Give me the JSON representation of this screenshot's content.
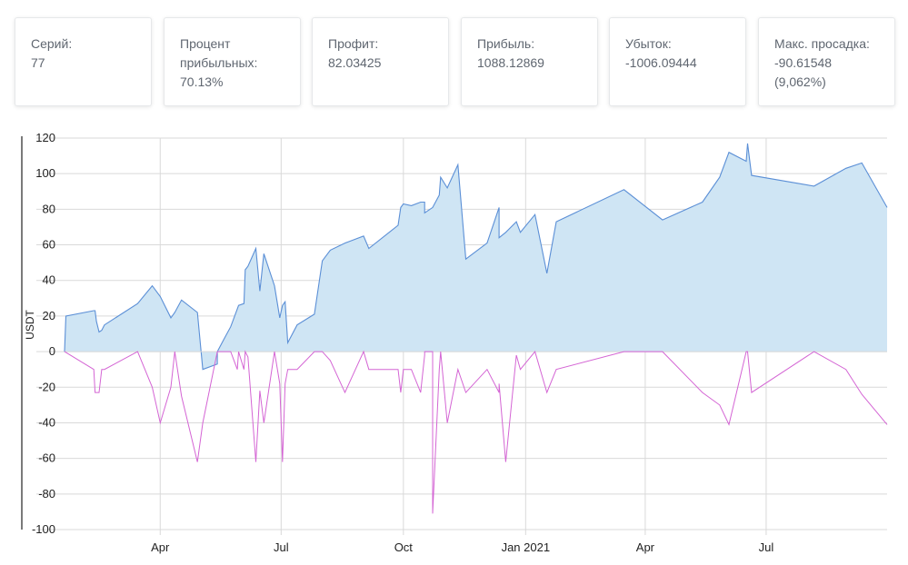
{
  "stats": [
    {
      "label": "Серий:",
      "value": "77"
    },
    {
      "label": "Процент прибыльных:",
      "value": "70.13%"
    },
    {
      "label": "Профит:",
      "value": "82.03425"
    },
    {
      "label": "Прибыль:",
      "value": "1088.12869"
    },
    {
      "label": "Убыток:",
      "value": "-1006.09444"
    },
    {
      "label": "Макс. просадка:",
      "value": "-90.61548 (9,062%)"
    }
  ],
  "colors": {
    "profit_line": "#5b8fd6",
    "profit_fill": "#cfe5f4",
    "drawdown_line": "#d465d4",
    "grid": "#d9d9d9"
  },
  "chart_data": {
    "type": "area",
    "title": "",
    "xlabel": "",
    "ylabel": "USDT",
    "ylim": [
      -100,
      120
    ],
    "yticks": [
      120,
      100,
      80,
      60,
      40,
      20,
      0,
      -20,
      -40,
      -60,
      -80,
      -100
    ],
    "x_unit": "day index from 2020-02-01",
    "xlim": [
      0,
      619
    ],
    "xticks": [
      {
        "x": 72,
        "label": "Apr"
      },
      {
        "x": 163,
        "label": "Jul"
      },
      {
        "x": 255,
        "label": "Oct"
      },
      {
        "x": 347,
        "label": "Jan 2021"
      },
      {
        "x": 437,
        "label": "Apr"
      },
      {
        "x": 528,
        "label": "Jul"
      }
    ],
    "series": [
      {
        "name": "Profit",
        "x": [
          0,
          1,
          22,
          23,
          24,
          26,
          28,
          30,
          55,
          66,
          72,
          80,
          83,
          88,
          100,
          104,
          115,
          115,
          120,
          125,
          130,
          131,
          135,
          136,
          138,
          144,
          147,
          150,
          158,
          162,
          164,
          166,
          168,
          175,
          188,
          194,
          200,
          211,
          225,
          229,
          251,
          253,
          255,
          261,
          268,
          271,
          271,
          277,
          277,
          282,
          283,
          288,
          296,
          302,
          318,
          327,
          327,
          332,
          340,
          343,
          354,
          363,
          370,
          421,
          450,
          480,
          493,
          500,
          513,
          514,
          517,
          564,
          588,
          600,
          619
        ],
        "values": [
          0,
          20,
          23,
          23,
          17,
          11,
          12,
          15,
          27,
          37,
          31,
          19,
          22,
          29,
          22,
          -10,
          -7,
          0,
          7,
          14,
          24,
          26,
          27,
          46,
          48,
          58,
          34,
          55,
          37,
          19,
          26,
          28,
          5,
          15,
          21,
          51,
          57,
          61,
          65,
          58,
          71,
          81,
          83,
          82,
          84,
          84,
          78,
          81,
          81,
          88,
          98,
          92,
          105,
          52,
          61,
          81,
          64,
          67,
          73,
          67,
          77,
          44,
          73,
          91,
          74,
          84,
          98,
          112,
          107,
          117,
          99,
          93,
          103,
          106,
          81
        ]
      },
      {
        "name": "Drawdown",
        "x": [
          0,
          22,
          23,
          24,
          26,
          28,
          30,
          55,
          66,
          72,
          80,
          83,
          88,
          100,
          104,
          115,
          120,
          125,
          130,
          131,
          135,
          136,
          138,
          144,
          147,
          150,
          158,
          162,
          164,
          166,
          168,
          175,
          188,
          194,
          200,
          211,
          225,
          229,
          251,
          253,
          255,
          261,
          268,
          271,
          271,
          277,
          277,
          282,
          283,
          288,
          296,
          302,
          318,
          327,
          327,
          332,
          340,
          343,
          354,
          363,
          370,
          421,
          450,
          480,
          493,
          500,
          513,
          514,
          517,
          564,
          588,
          600,
          619
        ],
        "values": [
          0,
          -10,
          -23,
          -23,
          -23,
          -10,
          -10,
          0,
          -20,
          -40,
          -20,
          0,
          -25,
          -62,
          -40,
          0,
          0,
          0,
          -10,
          0,
          -10,
          0,
          -3,
          -62,
          -22,
          -40,
          0,
          -18,
          -62,
          -18,
          -10,
          -10,
          0,
          0,
          -5,
          -23,
          0,
          -10,
          -10,
          -23,
          -10,
          -10,
          -23,
          -2,
          0,
          0,
          -91,
          -10,
          0,
          -40,
          -10,
          -23,
          -10,
          -23,
          -18,
          -62,
          -2,
          -10,
          0,
          -23,
          -10,
          0,
          0,
          -23,
          -30,
          -41,
          0,
          0,
          -23,
          0,
          -10,
          -24,
          -41
        ]
      }
    ]
  }
}
